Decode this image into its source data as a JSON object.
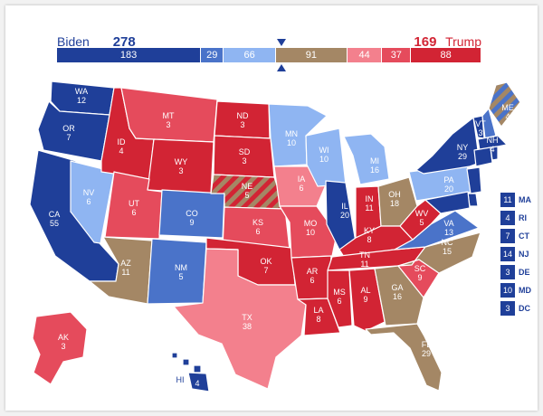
{
  "summary": {
    "biden_name": "Biden",
    "biden_votes": "278",
    "trump_votes": "169",
    "trump_name": "Trump"
  },
  "segments": [
    {
      "value": "183",
      "color": "#1f3f99"
    },
    {
      "value": "29",
      "color": "#4a73c9"
    },
    {
      "value": "66",
      "color": "#8fb5f2"
    },
    {
      "value": "91",
      "color": "#a48765"
    },
    {
      "value": "44",
      "color": "#f3808d"
    },
    {
      "value": "37",
      "color": "#e54b5c"
    },
    {
      "value": "88",
      "color": "#d22434"
    }
  ],
  "colors": {
    "safe_dem": "#1f3f99",
    "likely_dem": "#4a73c9",
    "lean_dem": "#8fb5f2",
    "tossup": "#a48765",
    "lean_rep": "#f3808d",
    "likely_rep": "#e54b5c",
    "safe_rep": "#d22434"
  },
  "states": [
    {
      "abbr": "WA",
      "ev": "12"
    },
    {
      "abbr": "OR",
      "ev": "7"
    },
    {
      "abbr": "CA",
      "ev": "55"
    },
    {
      "abbr": "NV",
      "ev": "6"
    },
    {
      "abbr": "ID",
      "ev": "4"
    },
    {
      "abbr": "MT",
      "ev": "3"
    },
    {
      "abbr": "WY",
      "ev": "3"
    },
    {
      "abbr": "UT",
      "ev": "6"
    },
    {
      "abbr": "AZ",
      "ev": "11"
    },
    {
      "abbr": "CO",
      "ev": "9"
    },
    {
      "abbr": "NM",
      "ev": "5"
    },
    {
      "abbr": "ND",
      "ev": "3"
    },
    {
      "abbr": "SD",
      "ev": "3"
    },
    {
      "abbr": "NE",
      "ev": "5"
    },
    {
      "abbr": "KS",
      "ev": "6"
    },
    {
      "abbr": "OK",
      "ev": "7"
    },
    {
      "abbr": "TX",
      "ev": "38"
    },
    {
      "abbr": "MN",
      "ev": "10"
    },
    {
      "abbr": "IA",
      "ev": "6"
    },
    {
      "abbr": "MO",
      "ev": "10"
    },
    {
      "abbr": "AR",
      "ev": "6"
    },
    {
      "abbr": "LA",
      "ev": "8"
    },
    {
      "abbr": "WI",
      "ev": "10"
    },
    {
      "abbr": "IL",
      "ev": "20"
    },
    {
      "abbr": "MI",
      "ev": "16"
    },
    {
      "abbr": "IN",
      "ev": "11"
    },
    {
      "abbr": "OH",
      "ev": "18"
    },
    {
      "abbr": "KY",
      "ev": "8"
    },
    {
      "abbr": "TN",
      "ev": "11"
    },
    {
      "abbr": "MS",
      "ev": "6"
    },
    {
      "abbr": "AL",
      "ev": "9"
    },
    {
      "abbr": "GA",
      "ev": "16"
    },
    {
      "abbr": "FL",
      "ev": "29"
    },
    {
      "abbr": "SC",
      "ev": "9"
    },
    {
      "abbr": "NC",
      "ev": "15"
    },
    {
      "abbr": "VA",
      "ev": "13"
    },
    {
      "abbr": "WV",
      "ev": "5"
    },
    {
      "abbr": "PA",
      "ev": "20"
    },
    {
      "abbr": "NY",
      "ev": "29"
    },
    {
      "abbr": "VT",
      "ev": "3"
    },
    {
      "abbr": "NH",
      "ev": "4"
    },
    {
      "abbr": "ME",
      "ev": "4"
    },
    {
      "abbr": "AK",
      "ev": "3"
    },
    {
      "abbr": "HI",
      "ev": "4"
    }
  ],
  "legend": [
    {
      "ev": "11",
      "name": "MA"
    },
    {
      "ev": "4",
      "name": "RI"
    },
    {
      "ev": "7",
      "name": "CT"
    },
    {
      "ev": "14",
      "name": "NJ"
    },
    {
      "ev": "3",
      "name": "DE"
    },
    {
      "ev": "10",
      "name": "MD"
    },
    {
      "ev": "3",
      "name": "DC"
    }
  ]
}
